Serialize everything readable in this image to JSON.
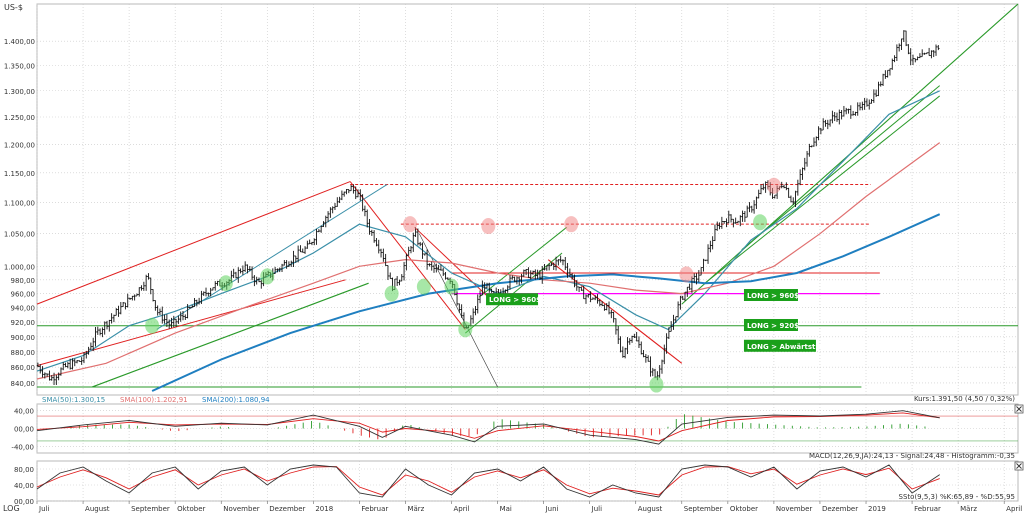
{
  "chart_data": [
    {
      "type": "line",
      "panel": "price",
      "currency_label": "US-$",
      "scale": "log",
      "ylim": [
        825,
        1480
      ],
      "y_ticks": [
        {
          "v": 840,
          "label": "840,00"
        },
        {
          "v": 860,
          "label": "860,00"
        },
        {
          "v": 880,
          "label": "880,00"
        },
        {
          "v": 900,
          "label": "900,00"
        },
        {
          "v": 920,
          "label": "920,00"
        },
        {
          "v": 940,
          "label": "940,00"
        },
        {
          "v": 960,
          "label": "960,00"
        },
        {
          "v": 980,
          "label": "980,00"
        },
        {
          "v": 1000,
          "label": "1.000,00"
        },
        {
          "v": 1050,
          "label": "1.050,00"
        },
        {
          "v": 1100,
          "label": "1.100,00"
        },
        {
          "v": 1150,
          "label": "1.150,00"
        },
        {
          "v": 1200,
          "label": "1.200,00"
        },
        {
          "v": 1250,
          "label": "1.250,00"
        },
        {
          "v": 1300,
          "label": "1.300,00"
        },
        {
          "v": 1350,
          "label": "1.350,00"
        },
        {
          "v": 1400,
          "label": "1.400,00"
        }
      ],
      "x_months": [
        {
          "m": 0,
          "label": "Juli"
        },
        {
          "m": 1,
          "label": "August"
        },
        {
          "m": 2,
          "label": "September"
        },
        {
          "m": 3,
          "label": "Oktober"
        },
        {
          "m": 4,
          "label": "November"
        },
        {
          "m": 5,
          "label": "Dezember"
        },
        {
          "m": 6,
          "label": "2018"
        },
        {
          "m": 7,
          "label": "Februar"
        },
        {
          "m": 8,
          "label": "März"
        },
        {
          "m": 9,
          "label": "April"
        },
        {
          "m": 10,
          "label": "Mai"
        },
        {
          "m": 11,
          "label": "Juni"
        },
        {
          "m": 12,
          "label": "Juli"
        },
        {
          "m": 13,
          "label": "August"
        },
        {
          "m": 14,
          "label": "September"
        },
        {
          "m": 15,
          "label": "Oktober"
        },
        {
          "m": 16,
          "label": "November"
        },
        {
          "m": 17,
          "label": "Dezember"
        },
        {
          "m": 18,
          "label": "2019"
        },
        {
          "m": 19,
          "label": "Februar"
        },
        {
          "m": 20,
          "label": "März"
        },
        {
          "m": 21,
          "label": "April"
        }
      ],
      "price_path": [
        [
          0.0,
          862
        ],
        [
          0.3,
          845
        ],
        [
          0.6,
          860
        ],
        [
          1.0,
          870
        ],
        [
          1.3,
          905
        ],
        [
          1.6,
          925
        ],
        [
          1.9,
          945
        ],
        [
          2.2,
          965
        ],
        [
          2.4,
          985
        ],
        [
          2.6,
          935
        ],
        [
          2.9,
          915
        ],
        [
          3.2,
          930
        ],
        [
          3.5,
          950
        ],
        [
          3.8,
          970
        ],
        [
          4.2,
          980
        ],
        [
          4.5,
          1000
        ],
        [
          4.8,
          975
        ],
        [
          5.1,
          990
        ],
        [
          5.5,
          1010
        ],
        [
          5.9,
          1030
        ],
        [
          6.2,
          1070
        ],
        [
          6.5,
          1100
        ],
        [
          6.8,
          1125
        ],
        [
          7.0,
          1110
        ],
        [
          7.2,
          1060
        ],
        [
          7.5,
          1020
        ],
        [
          7.7,
          970
        ],
        [
          7.9,
          985
        ],
        [
          8.2,
          1050
        ],
        [
          8.5,
          1000
        ],
        [
          8.8,
          990
        ],
        [
          9.0,
          980
        ],
        [
          9.2,
          930
        ],
        [
          9.3,
          905
        ],
        [
          9.5,
          935
        ],
        [
          9.7,
          975
        ],
        [
          9.9,
          955
        ],
        [
          10.1,
          965
        ],
        [
          10.3,
          980
        ],
        [
          10.6,
          990
        ],
        [
          10.9,
          985
        ],
        [
          11.1,
          1000
        ],
        [
          11.4,
          1010
        ],
        [
          11.6,
          985
        ],
        [
          11.8,
          960
        ],
        [
          12.0,
          955
        ],
        [
          12.3,
          945
        ],
        [
          12.5,
          925
        ],
        [
          12.7,
          875
        ],
        [
          12.9,
          905
        ],
        [
          13.1,
          885
        ],
        [
          13.3,
          860
        ],
        [
          13.45,
          845
        ],
        [
          13.6,
          880
        ],
        [
          13.8,
          920
        ],
        [
          14.0,
          955
        ],
        [
          14.2,
          975
        ],
        [
          14.4,
          990
        ],
        [
          14.6,
          1030
        ],
        [
          14.8,
          1065
        ],
        [
          15.0,
          1075
        ],
        [
          15.2,
          1070
        ],
        [
          15.5,
          1090
        ],
        [
          15.8,
          1130
        ],
        [
          16.0,
          1110
        ],
        [
          16.2,
          1135
        ],
        [
          16.4,
          1100
        ],
        [
          16.6,
          1150
        ],
        [
          16.8,
          1200
        ],
        [
          17.0,
          1230
        ],
        [
          17.3,
          1250
        ],
        [
          17.6,
          1260
        ],
        [
          17.9,
          1265
        ],
        [
          18.2,
          1295
        ],
        [
          18.4,
          1330
        ],
        [
          18.6,
          1365
        ],
        [
          18.8,
          1420
        ],
        [
          19.0,
          1355
        ],
        [
          19.3,
          1370
        ],
        [
          19.6,
          1390
        ]
      ],
      "sma_series": [
        {
          "label": "SMA(50):1.300,15",
          "color": "#3a8fa8",
          "values": [
            [
              0.0,
              855
            ],
            [
              1.0,
              875
            ],
            [
              2.0,
              915
            ],
            [
              3.0,
              935
            ],
            [
              4.0,
              960
            ],
            [
              5.0,
              985
            ],
            [
              6.0,
              1020
            ],
            [
              7.0,
              1065
            ],
            [
              8.0,
              1045
            ],
            [
              9.0,
              990
            ],
            [
              10.0,
              960
            ],
            [
              11.0,
              985
            ],
            [
              12.0,
              970
            ],
            [
              13.0,
              930
            ],
            [
              13.7,
              910
            ],
            [
              14.5,
              960
            ],
            [
              15.5,
              1040
            ],
            [
              16.5,
              1090
            ],
            [
              17.5,
              1170
            ],
            [
              18.5,
              1255
            ],
            [
              19.6,
              1300
            ]
          ]
        },
        {
          "label": "SMA(100):1.202,91",
          "color": "#e07070",
          "values": [
            [
              0.0,
              845
            ],
            [
              1.5,
              865
            ],
            [
              3.0,
              905
            ],
            [
              4.5,
              940
            ],
            [
              6.0,
              975
            ],
            [
              7.0,
              1000
            ],
            [
              8.0,
              1010
            ],
            [
              9.0,
              1005
            ],
            [
              10.0,
              990
            ],
            [
              11.0,
              980
            ],
            [
              12.0,
              975
            ],
            [
              13.0,
              965
            ],
            [
              14.0,
              960
            ],
            [
              15.0,
              975
            ],
            [
              16.0,
              1000
            ],
            [
              17.0,
              1050
            ],
            [
              18.0,
              1110
            ],
            [
              19.6,
              1203
            ]
          ]
        },
        {
          "label": "SMA(200):1.080,94",
          "color": "#1f7fc0",
          "values": [
            [
              2.5,
              830
            ],
            [
              4.0,
              870
            ],
            [
              5.5,
              905
            ],
            [
              7.0,
              935
            ],
            [
              8.5,
              960
            ],
            [
              10.0,
              975
            ],
            [
              11.5,
              985
            ],
            [
              12.5,
              988
            ],
            [
              13.5,
              982
            ],
            [
              14.5,
              975
            ],
            [
              15.5,
              978
            ],
            [
              16.5,
              990
            ],
            [
              17.5,
              1015
            ],
            [
              18.5,
              1045
            ],
            [
              19.6,
              1081
            ]
          ]
        }
      ],
      "annotations": [
        "LONG > 960$",
        "LONG > 960$",
        "LONG > 920$",
        "LONG > Abwärtstrend"
      ],
      "kurs_label": "Kurs:1.391,50 (4,50 / 0,32%)",
      "horizontal_levels": [
        {
          "value": 990,
          "color": "#e02020",
          "style": "solid"
        },
        {
          "value": 960,
          "color": "#ff00ff",
          "style": "solid"
        },
        {
          "value": 915,
          "color": "#2a9a2a",
          "style": "solid"
        },
        {
          "value": 835,
          "color": "#2a9a2a",
          "style": "solid"
        },
        {
          "value": 1130,
          "color": "#e02020",
          "style": "dashed"
        },
        {
          "value": 1065,
          "color": "#e02020",
          "style": "dashed"
        }
      ],
      "circles_green": [
        [
          2.5,
          915
        ],
        [
          4.1,
          975
        ],
        [
          5.0,
          985
        ],
        [
          7.7,
          960
        ],
        [
          8.4,
          970
        ],
        [
          9.0,
          970
        ],
        [
          9.3,
          910
        ],
        [
          13.45,
          838
        ],
        [
          15.7,
          1068
        ]
      ],
      "circles_red": [
        [
          8.1,
          1065
        ],
        [
          9.8,
          1062
        ],
        [
          11.6,
          1065
        ],
        [
          14.1,
          988
        ],
        [
          16.0,
          1128
        ]
      ]
    },
    {
      "type": "line",
      "panel": "macd",
      "y_tick_labels": [
        "40,00",
        "00,00",
        "-40,00"
      ],
      "legend_text": "MACD(12,26,9,JA):24,13 - Signal:24,48 - Histogramm:-0,35",
      "macd_values": [
        [
          0,
          -5
        ],
        [
          1,
          8
        ],
        [
          2,
          18
        ],
        [
          3,
          5
        ],
        [
          4,
          12
        ],
        [
          5,
          8
        ],
        [
          6,
          30
        ],
        [
          7,
          5
        ],
        [
          7.5,
          -20
        ],
        [
          8,
          5
        ],
        [
          9,
          -15
        ],
        [
          9.5,
          -30
        ],
        [
          10,
          5
        ],
        [
          11,
          10
        ],
        [
          12,
          -15
        ],
        [
          13,
          -25
        ],
        [
          13.5,
          -35
        ],
        [
          14,
          10
        ],
        [
          15,
          25
        ],
        [
          16,
          30
        ],
        [
          17,
          28
        ],
        [
          18,
          32
        ],
        [
          18.8,
          40
        ],
        [
          19.6,
          24
        ]
      ],
      "signal_values": [
        [
          0,
          -2
        ],
        [
          1,
          4
        ],
        [
          2,
          14
        ],
        [
          3,
          8
        ],
        [
          4,
          10
        ],
        [
          5,
          9
        ],
        [
          6,
          22
        ],
        [
          7,
          12
        ],
        [
          7.5,
          -8
        ],
        [
          8,
          0
        ],
        [
          9,
          -8
        ],
        [
          9.5,
          -22
        ],
        [
          10,
          -5
        ],
        [
          11,
          6
        ],
        [
          12,
          -6
        ],
        [
          13,
          -18
        ],
        [
          13.5,
          -28
        ],
        [
          14,
          -5
        ],
        [
          15,
          18
        ],
        [
          16,
          26
        ],
        [
          17,
          27
        ],
        [
          18,
          30
        ],
        [
          18.8,
          35
        ],
        [
          19.6,
          24
        ]
      ]
    },
    {
      "type": "line",
      "panel": "stochastic",
      "y_tick_labels": [
        "80,00",
        "40,00",
        "00,00"
      ],
      "legend_text": "SSto(9,5,3) %K:65,89 - %D:55,95",
      "k_values": [
        [
          0,
          30
        ],
        [
          0.5,
          70
        ],
        [
          1,
          85
        ],
        [
          1.5,
          50
        ],
        [
          2,
          20
        ],
        [
          2.5,
          70
        ],
        [
          3,
          85
        ],
        [
          3.5,
          30
        ],
        [
          4,
          75
        ],
        [
          4.5,
          85
        ],
        [
          5,
          40
        ],
        [
          5.5,
          80
        ],
        [
          6,
          90
        ],
        [
          6.5,
          85
        ],
        [
          7,
          20
        ],
        [
          7.5,
          10
        ],
        [
          8,
          80
        ],
        [
          8.5,
          40
        ],
        [
          9,
          15
        ],
        [
          9.5,
          70
        ],
        [
          10,
          80
        ],
        [
          10.5,
          50
        ],
        [
          11,
          85
        ],
        [
          11.5,
          30
        ],
        [
          12,
          10
        ],
        [
          12.5,
          40
        ],
        [
          13,
          20
        ],
        [
          13.5,
          10
        ],
        [
          14,
          80
        ],
        [
          14.5,
          90
        ],
        [
          15,
          85
        ],
        [
          15.5,
          60
        ],
        [
          16,
          85
        ],
        [
          16.5,
          30
        ],
        [
          17,
          75
        ],
        [
          17.5,
          85
        ],
        [
          18,
          60
        ],
        [
          18.5,
          90
        ],
        [
          19,
          20
        ],
        [
          19.6,
          66
        ]
      ],
      "d_values": [
        [
          0,
          35
        ],
        [
          0.5,
          60
        ],
        [
          1,
          78
        ],
        [
          1.5,
          58
        ],
        [
          2,
          30
        ],
        [
          2.5,
          60
        ],
        [
          3,
          78
        ],
        [
          3.5,
          40
        ],
        [
          4,
          65
        ],
        [
          4.5,
          80
        ],
        [
          5,
          50
        ],
        [
          5.5,
          70
        ],
        [
          6,
          85
        ],
        [
          6.5,
          86
        ],
        [
          7,
          35
        ],
        [
          7.5,
          15
        ],
        [
          8,
          65
        ],
        [
          8.5,
          50
        ],
        [
          9,
          22
        ],
        [
          9.5,
          60
        ],
        [
          10,
          75
        ],
        [
          10.5,
          58
        ],
        [
          11,
          78
        ],
        [
          11.5,
          40
        ],
        [
          12,
          18
        ],
        [
          12.5,
          32
        ],
        [
          13,
          25
        ],
        [
          13.5,
          15
        ],
        [
          14,
          65
        ],
        [
          14.5,
          85
        ],
        [
          15,
          86
        ],
        [
          15.5,
          68
        ],
        [
          16,
          80
        ],
        [
          16.5,
          42
        ],
        [
          17,
          65
        ],
        [
          17.5,
          80
        ],
        [
          18,
          66
        ],
        [
          18.5,
          82
        ],
        [
          19,
          30
        ],
        [
          19.6,
          56
        ]
      ]
    }
  ],
  "footer": {
    "scale_label": "LOG"
  }
}
